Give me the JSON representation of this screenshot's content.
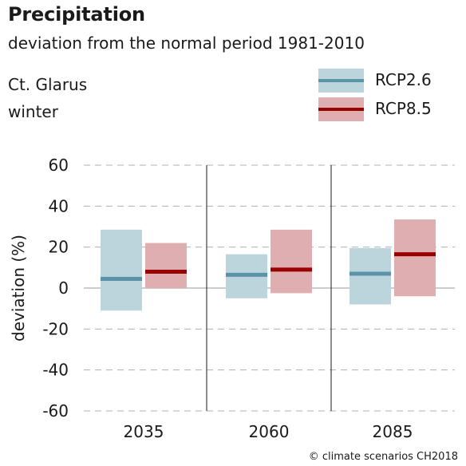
{
  "header": {
    "title": "Precipitation",
    "subtitle": "deviation from the normal period 1981-2010",
    "region": "Ct. Glarus",
    "season": "winter"
  },
  "credit": "© climate scenarios CH2018",
  "colors": {
    "rcp26_box": "#bcd5dd",
    "rcp26_line": "#5b93a8",
    "rcp85_box": "#dfaeb0",
    "rcp85_line": "#990000",
    "grid": "#b0b0b0",
    "zero_line": "#999999"
  },
  "chart_data": {
    "type": "bar",
    "categories": [
      "2035",
      "2060",
      "2085"
    ],
    "ylabel": "deviation (%)",
    "ylim": [
      -60,
      60
    ],
    "yticks": [
      60,
      40,
      20,
      0,
      -20,
      -40,
      -60
    ],
    "ytick_labels": [
      "60",
      "40",
      "20",
      "0",
      "-20",
      "-40",
      "-60"
    ],
    "grid": true,
    "legend_position": "top-right",
    "series": [
      {
        "name": "RCP2.6",
        "low": [
          -11,
          -5,
          -8
        ],
        "median": [
          4.5,
          6.5,
          7
        ],
        "high": [
          28.5,
          16.5,
          19.5
        ]
      },
      {
        "name": "RCP8.5",
        "low": [
          0,
          -2.5,
          -4
        ],
        "median": [
          8,
          9,
          16.5
        ],
        "high": [
          22,
          28.5,
          33.5
        ]
      }
    ]
  }
}
